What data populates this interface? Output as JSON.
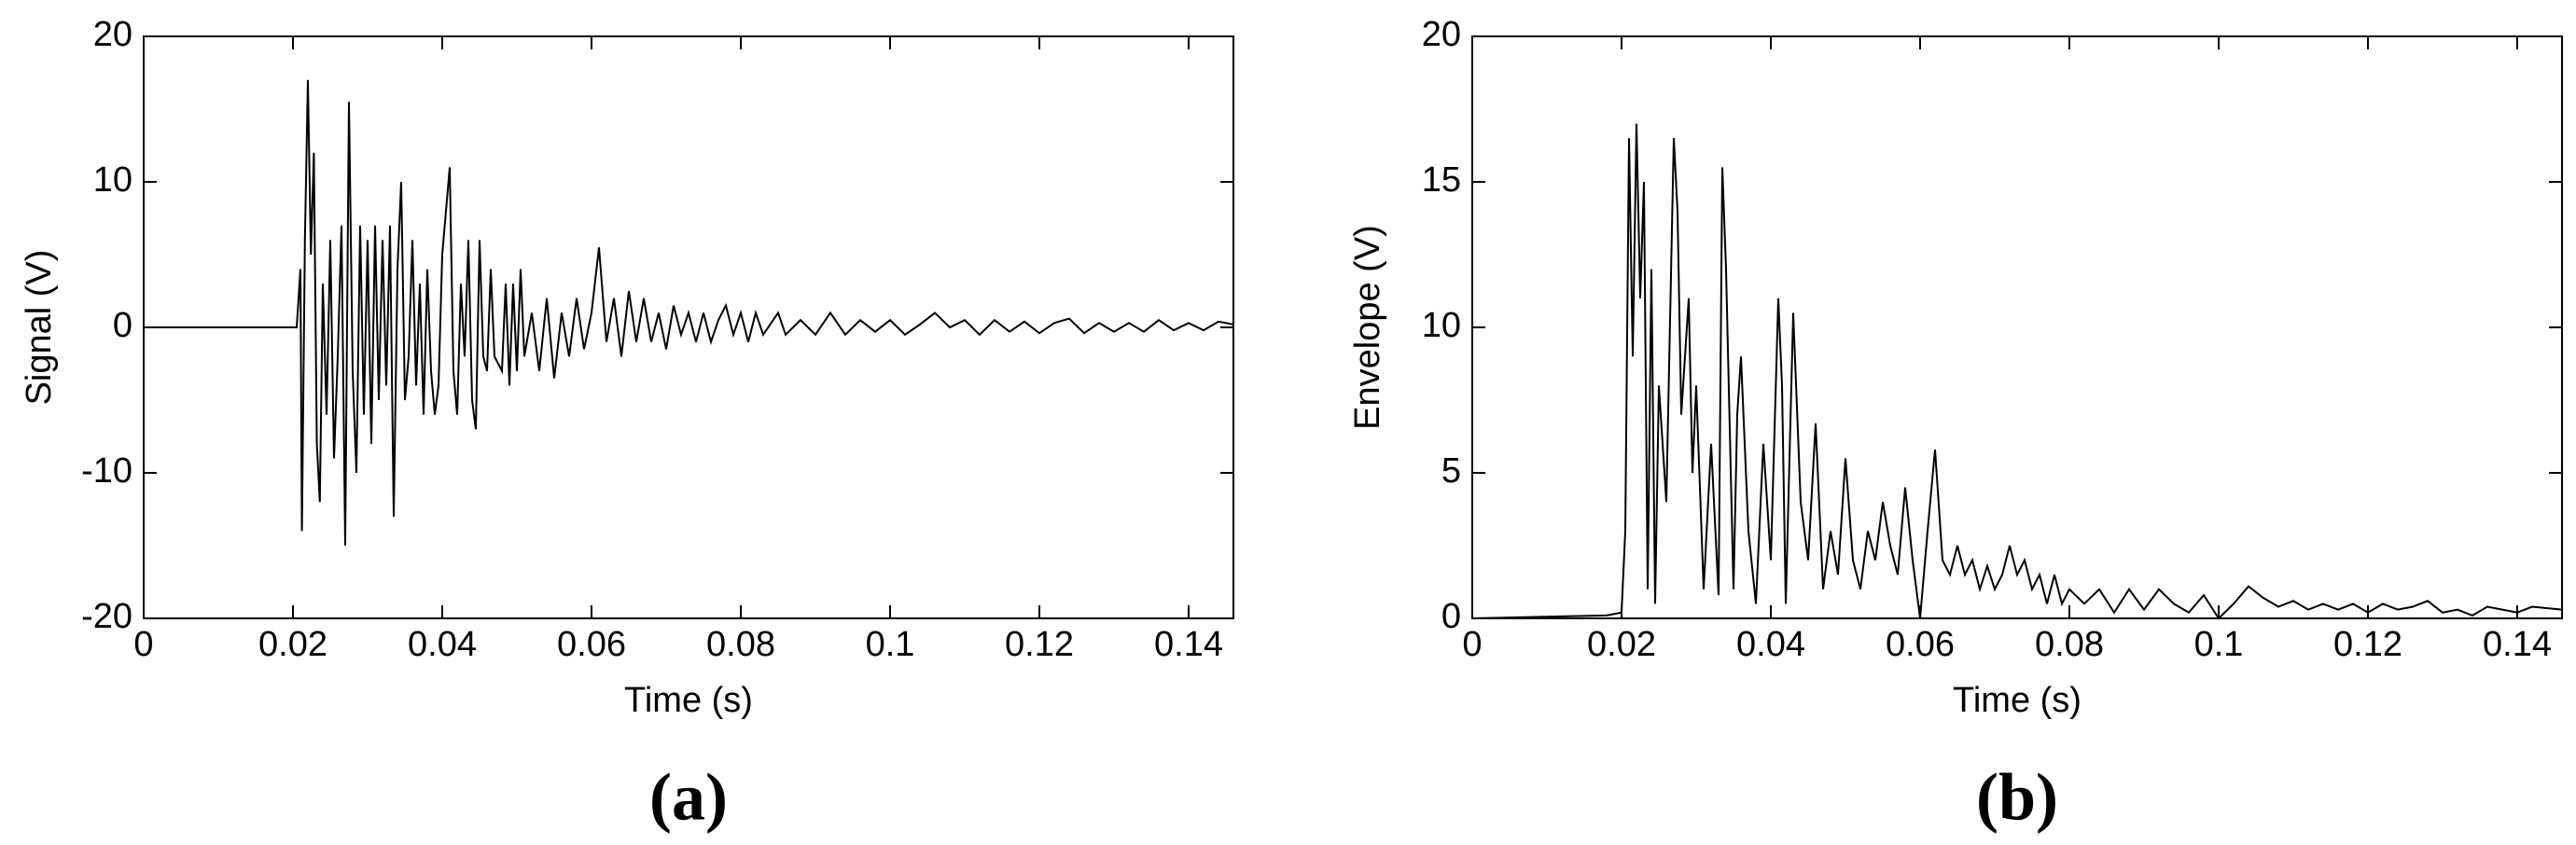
{
  "chart_data": [
    {
      "type": "line",
      "caption": "(a)",
      "x_label": "Time (s)",
      "y_label": "Signal (V)",
      "color": "#000000",
      "xlim": [
        0,
        0.146
      ],
      "xticks": [
        0,
        0.02,
        0.04,
        0.06,
        0.08,
        0.1,
        0.12,
        0.14
      ],
      "ylim": [
        -20,
        20
      ],
      "yticks": [
        -20,
        -10,
        0,
        10,
        20
      ],
      "x": [
        0,
        0.0205,
        0.021,
        0.0212,
        0.0216,
        0.022,
        0.0224,
        0.0228,
        0.0232,
        0.0236,
        0.024,
        0.0245,
        0.025,
        0.0255,
        0.026,
        0.0265,
        0.027,
        0.0275,
        0.028,
        0.0285,
        0.029,
        0.0295,
        0.03,
        0.0305,
        0.031,
        0.0315,
        0.032,
        0.0325,
        0.033,
        0.0335,
        0.034,
        0.0345,
        0.035,
        0.0355,
        0.036,
        0.0365,
        0.037,
        0.0375,
        0.038,
        0.0385,
        0.039,
        0.0395,
        0.04,
        0.041,
        0.0415,
        0.042,
        0.0425,
        0.043,
        0.0435,
        0.044,
        0.0445,
        0.045,
        0.0455,
        0.046,
        0.0465,
        0.047,
        0.048,
        0.0485,
        0.049,
        0.0495,
        0.05,
        0.0505,
        0.051,
        0.052,
        0.053,
        0.054,
        0.055,
        0.056,
        0.057,
        0.058,
        0.059,
        0.06,
        0.061,
        0.062,
        0.063,
        0.064,
        0.065,
        0.066,
        0.067,
        0.068,
        0.069,
        0.07,
        0.071,
        0.072,
        0.073,
        0.074,
        0.075,
        0.076,
        0.077,
        0.078,
        0.079,
        0.08,
        0.081,
        0.082,
        0.083,
        0.085,
        0.086,
        0.088,
        0.09,
        0.092,
        0.094,
        0.096,
        0.098,
        0.1,
        0.102,
        0.104,
        0.106,
        0.108,
        0.11,
        0.112,
        0.114,
        0.116,
        0.118,
        0.12,
        0.122,
        0.124,
        0.126,
        0.128,
        0.13,
        0.132,
        0.134,
        0.136,
        0.138,
        0.14,
        0.142,
        0.144,
        0.146
      ],
      "values": [
        0,
        0,
        4,
        -14,
        6,
        17,
        5,
        12,
        -8,
        -12,
        3,
        -6,
        6,
        -9,
        -2,
        7,
        -15,
        15.5,
        -3,
        -10,
        7,
        -6,
        6,
        -8,
        7,
        -5,
        6,
        -4,
        7,
        -13,
        4,
        10,
        -5,
        -2,
        6,
        -4,
        3,
        -6,
        4,
        -3,
        -6,
        -4,
        5,
        11,
        -3,
        -6,
        3,
        -2,
        6,
        -5,
        -7,
        6,
        -2,
        -3,
        4,
        -2,
        -3,
        3,
        -4,
        3,
        -3,
        4,
        -2,
        1,
        -3,
        2,
        -3.5,
        1,
        -2,
        2,
        -1.5,
        1,
        5.5,
        -1,
        2,
        -2,
        2.5,
        -1,
        2,
        -1,
        1,
        -1.5,
        1.5,
        -0.5,
        1,
        -1,
        1,
        -1,
        0.5,
        1.5,
        -0.5,
        1,
        -1,
        1,
        -0.5,
        1,
        -0.5,
        0.5,
        -0.5,
        1,
        -0.5,
        0.5,
        -0.3,
        0.5,
        -0.5,
        0.2,
        1,
        0,
        0.5,
        -0.5,
        0.5,
        -0.3,
        0.4,
        -0.4,
        0.3,
        0.6,
        -0.4,
        0.3,
        -0.3,
        0.3,
        -0.3,
        0.5,
        -0.2,
        0.3,
        -0.2,
        0.4,
        0.2
      ]
    },
    {
      "type": "line",
      "caption": "(b)",
      "x_label": "Time (s)",
      "y_label": "Envelope (V)",
      "color": "#000000",
      "xlim": [
        0,
        0.146
      ],
      "xticks": [
        0,
        0.02,
        0.04,
        0.06,
        0.08,
        0.1,
        0.12,
        0.14
      ],
      "ylim": [
        0,
        20
      ],
      "yticks": [
        0,
        5,
        10,
        15,
        20
      ],
      "x": [
        0,
        0.018,
        0.02,
        0.0205,
        0.021,
        0.0215,
        0.022,
        0.0225,
        0.023,
        0.0235,
        0.024,
        0.0245,
        0.025,
        0.026,
        0.027,
        0.0275,
        0.028,
        0.029,
        0.0295,
        0.03,
        0.031,
        0.032,
        0.033,
        0.0335,
        0.034,
        0.035,
        0.0355,
        0.036,
        0.037,
        0.038,
        0.039,
        0.04,
        0.041,
        0.0415,
        0.042,
        0.043,
        0.044,
        0.045,
        0.046,
        0.047,
        0.048,
        0.049,
        0.05,
        0.051,
        0.052,
        0.053,
        0.054,
        0.055,
        0.056,
        0.057,
        0.058,
        0.059,
        0.06,
        0.061,
        0.062,
        0.063,
        0.064,
        0.065,
        0.066,
        0.067,
        0.068,
        0.069,
        0.07,
        0.071,
        0.072,
        0.073,
        0.074,
        0.075,
        0.076,
        0.077,
        0.078,
        0.079,
        0.08,
        0.082,
        0.084,
        0.086,
        0.088,
        0.09,
        0.092,
        0.094,
        0.096,
        0.098,
        0.1,
        0.102,
        0.104,
        0.106,
        0.108,
        0.11,
        0.112,
        0.114,
        0.116,
        0.118,
        0.12,
        0.122,
        0.124,
        0.126,
        0.128,
        0.13,
        0.132,
        0.134,
        0.136,
        0.138,
        0.14,
        0.142,
        0.146
      ],
      "values": [
        0,
        0.1,
        0.2,
        3,
        16.5,
        9,
        17,
        11,
        15,
        1,
        12,
        0.5,
        8,
        4,
        16.5,
        14,
        7,
        11,
        5,
        8,
        1,
        6,
        0.8,
        15.5,
        12,
        1,
        7,
        9,
        3,
        0.5,
        6,
        2,
        11,
        8,
        0.5,
        10.5,
        4,
        2,
        6.7,
        1,
        3,
        1.5,
        5.5,
        2,
        1,
        3,
        2,
        4,
        2.5,
        1.5,
        4.5,
        2,
        0,
        3,
        5.8,
        2,
        1.5,
        2.5,
        1.5,
        2,
        1,
        1.8,
        1,
        1.5,
        2.5,
        1.5,
        2,
        1,
        1.5,
        0.5,
        1.5,
        0.5,
        1,
        0.5,
        1,
        0.2,
        1,
        0.3,
        1,
        0.5,
        0.2,
        0.8,
        0,
        0.5,
        1.1,
        0.7,
        0.4,
        0.6,
        0.3,
        0.5,
        0.3,
        0.5,
        0.2,
        0.5,
        0.3,
        0.4,
        0.6,
        0.2,
        0.3,
        0.1,
        0.4,
        0.3,
        0.2,
        0.4,
        0.3
      ]
    }
  ]
}
